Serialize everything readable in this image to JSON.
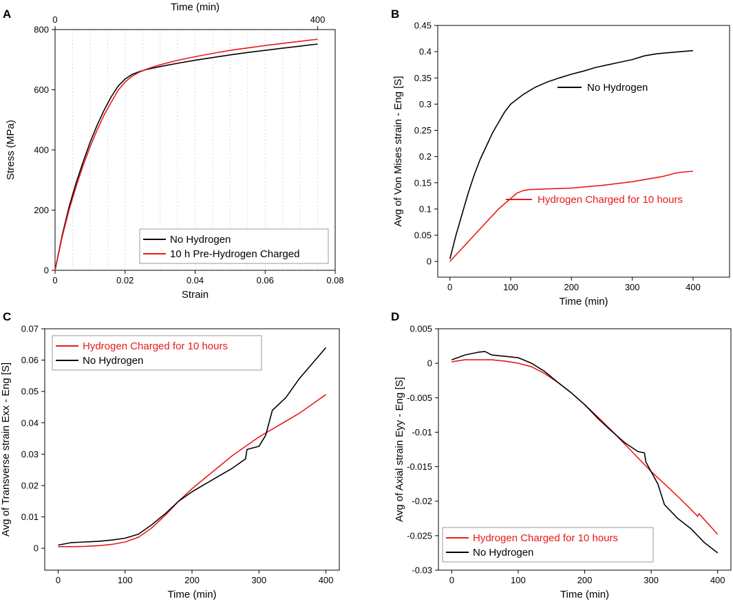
{
  "figure": {
    "colors": {
      "no_hydrogen": "#000000",
      "hydrogen": "#e8191b"
    }
  },
  "chart_data": [
    {
      "panel": "A",
      "type": "line",
      "xlabel": "Strain",
      "ylabel": "Stress (MPa)",
      "top_axis_label": "Time (min)",
      "top_ticks": [
        "0",
        "400"
      ],
      "xlim": [
        0,
        0.08
      ],
      "ylim": [
        0,
        800
      ],
      "xticks": [
        "0",
        "0.02",
        "0.04",
        "0.06",
        "0.08"
      ],
      "yticks": [
        "0",
        "200",
        "400",
        "600",
        "800"
      ],
      "legend_position": "bottom-right",
      "series": [
        {
          "name": "No Hydrogen",
          "color": "#000000",
          "x": [
            0,
            0.002,
            0.004,
            0.006,
            0.008,
            0.01,
            0.012,
            0.014,
            0.016,
            0.018,
            0.02,
            0.022,
            0.024,
            0.026,
            0.028,
            0.03,
            0.035,
            0.04,
            0.045,
            0.05,
            0.055,
            0.06,
            0.065,
            0.07,
            0.075
          ],
          "y": [
            0,
            115,
            210,
            290,
            360,
            425,
            482,
            532,
            576,
            612,
            636,
            651,
            660,
            667,
            672,
            677,
            688,
            698,
            707,
            716,
            724,
            731,
            738,
            745,
            752
          ]
        },
        {
          "name": "10 h Pre-Hydrogen Charged",
          "color": "#e8191b",
          "x": [
            0,
            0.002,
            0.004,
            0.006,
            0.008,
            0.01,
            0.012,
            0.014,
            0.016,
            0.018,
            0.02,
            0.022,
            0.024,
            0.026,
            0.028,
            0.03,
            0.035,
            0.04,
            0.045,
            0.05,
            0.055,
            0.06,
            0.065,
            0.07,
            0.075
          ],
          "y": [
            0,
            110,
            200,
            278,
            348,
            410,
            466,
            516,
            558,
            598,
            626,
            645,
            658,
            668,
            676,
            683,
            698,
            710,
            721,
            731,
            739,
            747,
            754,
            761,
            768
          ]
        }
      ]
    },
    {
      "panel": "B",
      "type": "line",
      "xlabel": "Time (min)",
      "ylabel": "Avg of Von Mises strain - Eng [S]",
      "xlim": [
        -20,
        460
      ],
      "ylim": [
        -0.03,
        0.45
      ],
      "xticks": [
        "0",
        "100",
        "200",
        "300",
        "400"
      ],
      "yticks": [
        "0",
        "0.05",
        "0.1",
        "0.15",
        "0.2",
        "0.25",
        "0.3",
        "0.35",
        "0.4",
        "0.45"
      ],
      "annotations": [
        "No Hydrogen",
        "Hydrogen Charged for 10 hours"
      ],
      "series": [
        {
          "name": "No Hydrogen",
          "color": "#000000",
          "x": [
            0,
            10,
            20,
            30,
            40,
            50,
            60,
            70,
            80,
            90,
            100,
            120,
            140,
            160,
            180,
            200,
            220,
            240,
            260,
            280,
            300,
            320,
            340,
            360,
            380,
            400
          ],
          "y": [
            0.005,
            0.05,
            0.09,
            0.13,
            0.165,
            0.195,
            0.22,
            0.245,
            0.265,
            0.285,
            0.3,
            0.318,
            0.332,
            0.342,
            0.35,
            0.357,
            0.363,
            0.37,
            0.375,
            0.38,
            0.385,
            0.392,
            0.396,
            0.398,
            0.4,
            0.402
          ]
        },
        {
          "name": "Hydrogen Charged for 10 hours",
          "color": "#e8191b",
          "x": [
            0,
            20,
            40,
            60,
            80,
            100,
            110,
            120,
            130,
            150,
            200,
            250,
            300,
            350,
            370,
            380,
            400
          ],
          "y": [
            0,
            0.025,
            0.05,
            0.075,
            0.1,
            0.12,
            0.13,
            0.135,
            0.137,
            0.138,
            0.14,
            0.145,
            0.152,
            0.162,
            0.168,
            0.17,
            0.172
          ]
        }
      ]
    },
    {
      "panel": "C",
      "type": "line",
      "xlabel": "Time (min)",
      "ylabel": "Avg of Transverse strain Exx - Eng [S]",
      "xlim": [
        -20,
        420
      ],
      "ylim": [
        -0.007,
        0.07
      ],
      "xticks": [
        "0",
        "100",
        "200",
        "300",
        "400"
      ],
      "yticks": [
        "0",
        "0.01",
        "0.02",
        "0.03",
        "0.04",
        "0.05",
        "0.06",
        "0.07"
      ],
      "legend_position": "top-left",
      "series": [
        {
          "name": "Hydrogen Charged for 10 hours",
          "color": "#e8191b",
          "x": [
            0,
            20,
            40,
            60,
            80,
            100,
            120,
            140,
            160,
            180,
            200,
            220,
            240,
            260,
            280,
            300,
            320,
            340,
            360,
            380,
            400
          ],
          "y": [
            0.0005,
            0.0005,
            0.0006,
            0.0008,
            0.0012,
            0.002,
            0.0035,
            0.0065,
            0.0105,
            0.015,
            0.019,
            0.0225,
            0.026,
            0.0295,
            0.0325,
            0.0355,
            0.038,
            0.0405,
            0.043,
            0.046,
            0.049
          ]
        },
        {
          "name": "No Hydrogen",
          "color": "#000000",
          "x": [
            0,
            20,
            40,
            60,
            80,
            100,
            120,
            140,
            160,
            180,
            200,
            220,
            240,
            260,
            270,
            280,
            282,
            300,
            310,
            320,
            340,
            360,
            380,
            400
          ],
          "y": [
            0.001,
            0.0018,
            0.002,
            0.0022,
            0.0026,
            0.0032,
            0.0045,
            0.0075,
            0.011,
            0.015,
            0.018,
            0.0205,
            0.023,
            0.0255,
            0.027,
            0.0285,
            0.0315,
            0.0325,
            0.036,
            0.044,
            0.048,
            0.054,
            0.059,
            0.064
          ]
        }
      ]
    },
    {
      "panel": "D",
      "type": "line",
      "xlabel": "Time (min)",
      "ylabel": "Avg of Axial strain Eyy - Eng [S]",
      "xlim": [
        -20,
        420
      ],
      "ylim": [
        -0.03,
        0.005
      ],
      "xticks": [
        "0",
        "100",
        "200",
        "300",
        "400"
      ],
      "yticks": [
        "-0.03",
        "-0.025",
        "-0.02",
        "-0.015",
        "-0.01",
        "-0.005",
        "0",
        "0.005"
      ],
      "legend_position": "bottom-left",
      "series": [
        {
          "name": "Hydrogen Charged for 10 hours",
          "color": "#e8191b",
          "x": [
            0,
            20,
            40,
            60,
            80,
            100,
            120,
            140,
            160,
            180,
            200,
            220,
            240,
            260,
            280,
            300,
            320,
            340,
            360,
            370,
            372,
            400
          ],
          "y": [
            0.0002,
            0.0005,
            0.0005,
            0.0005,
            0.0003,
            0.0,
            -0.0005,
            -0.0015,
            -0.0028,
            -0.0043,
            -0.006,
            -0.0078,
            -0.0097,
            -0.0117,
            -0.0137,
            -0.0157,
            -0.0175,
            -0.0193,
            -0.0212,
            -0.0222,
            -0.0218,
            -0.0248
          ]
        },
        {
          "name": "No Hydrogen",
          "color": "#000000",
          "x": [
            0,
            20,
            40,
            50,
            60,
            80,
            100,
            120,
            140,
            160,
            180,
            200,
            220,
            240,
            260,
            280,
            290,
            292,
            310,
            320,
            340,
            360,
            380,
            400
          ],
          "y": [
            0.0005,
            0.0012,
            0.0016,
            0.0017,
            0.0012,
            0.001,
            0.0008,
            0.0,
            -0.0012,
            -0.0028,
            -0.0043,
            -0.006,
            -0.008,
            -0.0098,
            -0.0115,
            -0.0128,
            -0.013,
            -0.0143,
            -0.0175,
            -0.0205,
            -0.0225,
            -0.024,
            -0.026,
            -0.0275
          ]
        }
      ]
    }
  ]
}
